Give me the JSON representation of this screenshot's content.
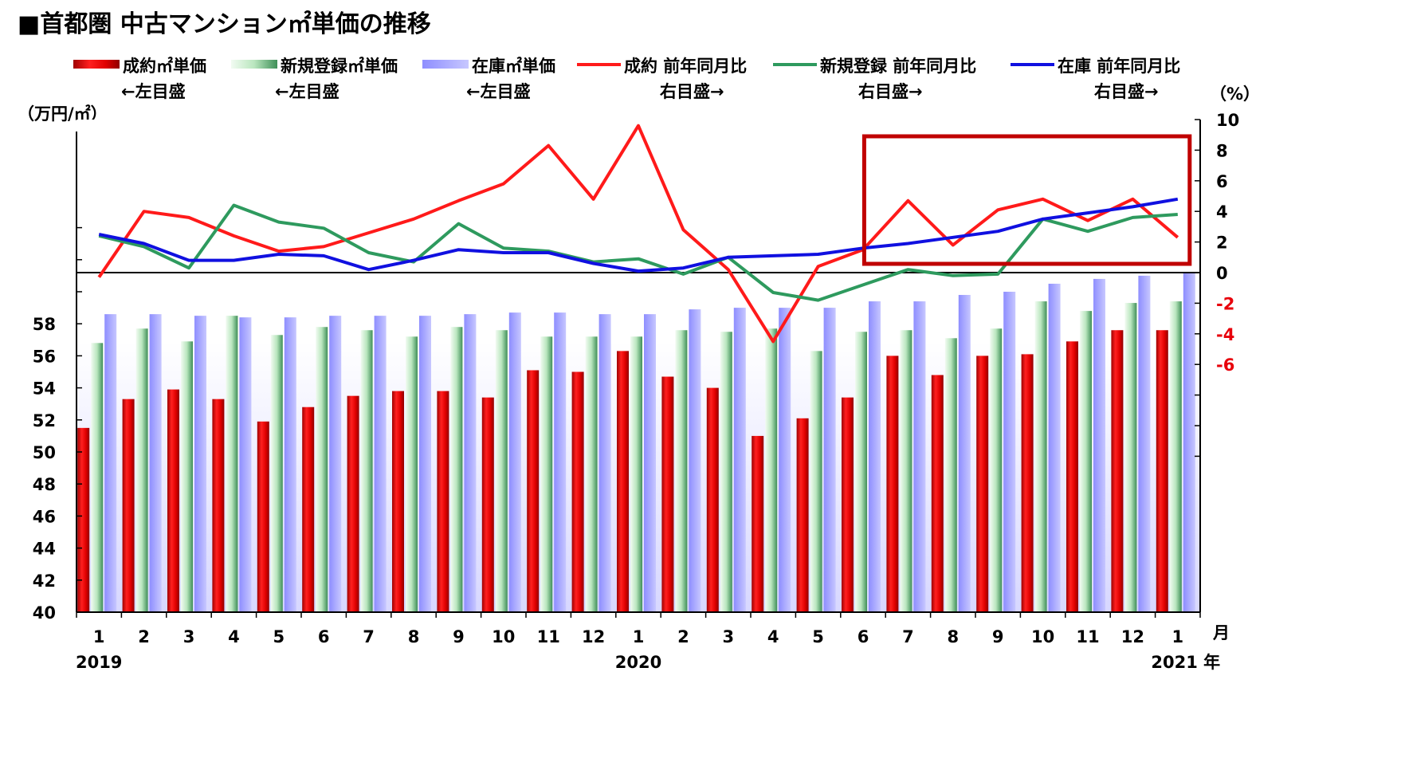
{
  "title": "■首都圏 中古マンション㎡単価の推移",
  "left_unit": "（万円/㎡）",
  "right_unit": "（%）",
  "month_unit": "月",
  "legend": [
    {
      "label": "成約㎡単価",
      "sub": "←左目盛",
      "kind": "bar",
      "color": "#d90000"
    },
    {
      "label": "新規登録㎡単価",
      "sub": "←左目盛",
      "kind": "bar",
      "color": "#7bbf8c"
    },
    {
      "label": "在庫㎡単価",
      "sub": "←左目盛",
      "kind": "bar",
      "color": "#a6a6ff"
    },
    {
      "label": "成約 前年同月比",
      "sub": "右目盛→",
      "kind": "line",
      "color": "#ff1a1a"
    },
    {
      "label": "新規登録 前年同月比",
      "sub": "右目盛→",
      "kind": "line",
      "color": "#2e9a5e"
    },
    {
      "label": "在庫 前年同月比",
      "sub": "右目盛→",
      "kind": "line",
      "color": "#1010e0"
    }
  ],
  "chart_data": {
    "type": "bar",
    "categories": [
      "1",
      "2",
      "3",
      "4",
      "5",
      "6",
      "7",
      "8",
      "9",
      "10",
      "11",
      "12",
      "1",
      "2",
      "3",
      "4",
      "5",
      "6",
      "7",
      "8",
      "9",
      "10",
      "11",
      "12",
      "1"
    ],
    "year_labels": [
      {
        "index": 0,
        "label": "2019"
      },
      {
        "index": 12,
        "label": "2020"
      },
      {
        "index": 24,
        "label": "2021 年"
      }
    ],
    "left_axis": {
      "ylim": [
        40,
        58
      ],
      "ticks": [
        "40",
        "42",
        "44",
        "46",
        "48",
        "50",
        "52",
        "54",
        "56",
        "58"
      ]
    },
    "right_axis": {
      "ylim": [
        -6,
        10
      ],
      "ticks": [
        "10",
        "8",
        "6",
        "4",
        "2",
        "0",
        "-2",
        "-4",
        "-6"
      ],
      "negative_color": "#e8000b"
    },
    "bar_series": [
      {
        "name": "成約㎡単価",
        "color": "#d90000",
        "values": [
          51.5,
          53.3,
          53.9,
          53.3,
          51.9,
          52.8,
          53.5,
          53.8,
          53.8,
          53.4,
          55.1,
          55.0,
          56.3,
          54.7,
          54.0,
          51.0,
          52.1,
          53.4,
          56.0,
          54.8,
          56.0,
          56.1,
          56.9,
          57.6,
          57.6
        ]
      },
      {
        "name": "新規登録㎡単価",
        "color": "#7bbf8c",
        "values": [
          56.8,
          57.7,
          56.9,
          58.5,
          57.3,
          57.8,
          57.6,
          57.2,
          57.8,
          57.6,
          57.2,
          57.2,
          57.2,
          57.6,
          57.5,
          57.7,
          56.3,
          57.5,
          57.6,
          57.1,
          57.7,
          59.4,
          58.8,
          59.3,
          59.4
        ]
      },
      {
        "name": "在庫㎡単価",
        "color": "#a6a6ff",
        "values": [
          58.6,
          58.6,
          58.5,
          58.4,
          58.4,
          58.5,
          58.5,
          58.5,
          58.6,
          58.7,
          58.7,
          58.6,
          58.6,
          58.9,
          59.0,
          59.0,
          59.0,
          59.4,
          59.4,
          59.8,
          60.0,
          60.5,
          60.8,
          61.0,
          61.2
        ]
      }
    ],
    "line_series": [
      {
        "name": "成約 前年同月比",
        "color": "#ff1a1a",
        "values": [
          -0.3,
          4.0,
          3.6,
          2.4,
          1.4,
          1.7,
          2.6,
          3.5,
          4.7,
          5.8,
          8.3,
          4.8,
          9.6,
          2.8,
          0.2,
          -4.5,
          0.4,
          1.5,
          4.7,
          1.8,
          4.1,
          4.8,
          3.4,
          4.8,
          2.3
        ]
      },
      {
        "name": "新規登録 前年同月比",
        "color": "#2e9a5e",
        "values": [
          2.4,
          1.7,
          0.3,
          4.4,
          3.3,
          2.9,
          1.3,
          0.7,
          3.2,
          1.6,
          1.4,
          0.7,
          0.9,
          -0.1,
          1.0,
          -1.3,
          -1.8,
          -0.8,
          0.2,
          -0.2,
          -0.1,
          3.5,
          2.7,
          3.6,
          3.8
        ]
      },
      {
        "name": "在庫 前年同月比",
        "color": "#1010e0",
        "values": [
          2.5,
          1.9,
          0.8,
          0.8,
          1.2,
          1.1,
          0.2,
          0.8,
          1.5,
          1.3,
          1.3,
          0.6,
          0.1,
          0.3,
          1.0,
          1.1,
          1.2,
          1.6,
          1.9,
          2.3,
          2.7,
          3.5,
          3.9,
          4.3,
          4.8
        ]
      }
    ],
    "highlight": {
      "from_index": 18,
      "to_index": 24,
      "color": "#c00000"
    }
  }
}
